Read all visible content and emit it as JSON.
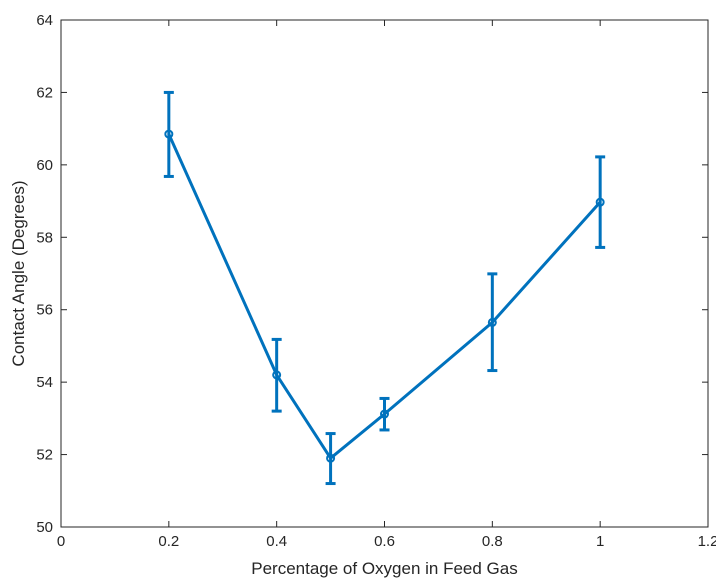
{
  "chart_data": {
    "type": "line",
    "title": "",
    "xlabel": "Percentage of Oxygen in Feed Gas",
    "ylabel": "Contact Angle (Degrees)",
    "xlim": [
      0,
      1.2
    ],
    "ylim": [
      50,
      64
    ],
    "x_ticks": [
      0,
      0.2,
      0.4,
      0.6,
      0.8,
      1,
      1.2
    ],
    "x_tick_labels": [
      "0",
      "0.2",
      "0.4",
      "0.6",
      "0.8",
      "1",
      "1.2"
    ],
    "y_ticks": [
      50,
      52,
      54,
      56,
      58,
      60,
      62,
      64
    ],
    "y_tick_labels": [
      "50",
      "52",
      "54",
      "56",
      "58",
      "60",
      "62",
      "64"
    ],
    "grid": false,
    "legend": "none",
    "series": [
      {
        "color": "#0072BD",
        "marker": "circle",
        "x": [
          0.2,
          0.4,
          0.5,
          0.6,
          0.8,
          1.0
        ],
        "y": [
          60.85,
          54.2,
          51.9,
          53.12,
          55.65,
          58.97
        ],
        "error_low": [
          59.68,
          53.2,
          51.2,
          52.68,
          54.32,
          57.72
        ],
        "error_high": [
          62.0,
          55.18,
          52.58,
          53.55,
          56.99,
          60.22
        ]
      }
    ]
  }
}
